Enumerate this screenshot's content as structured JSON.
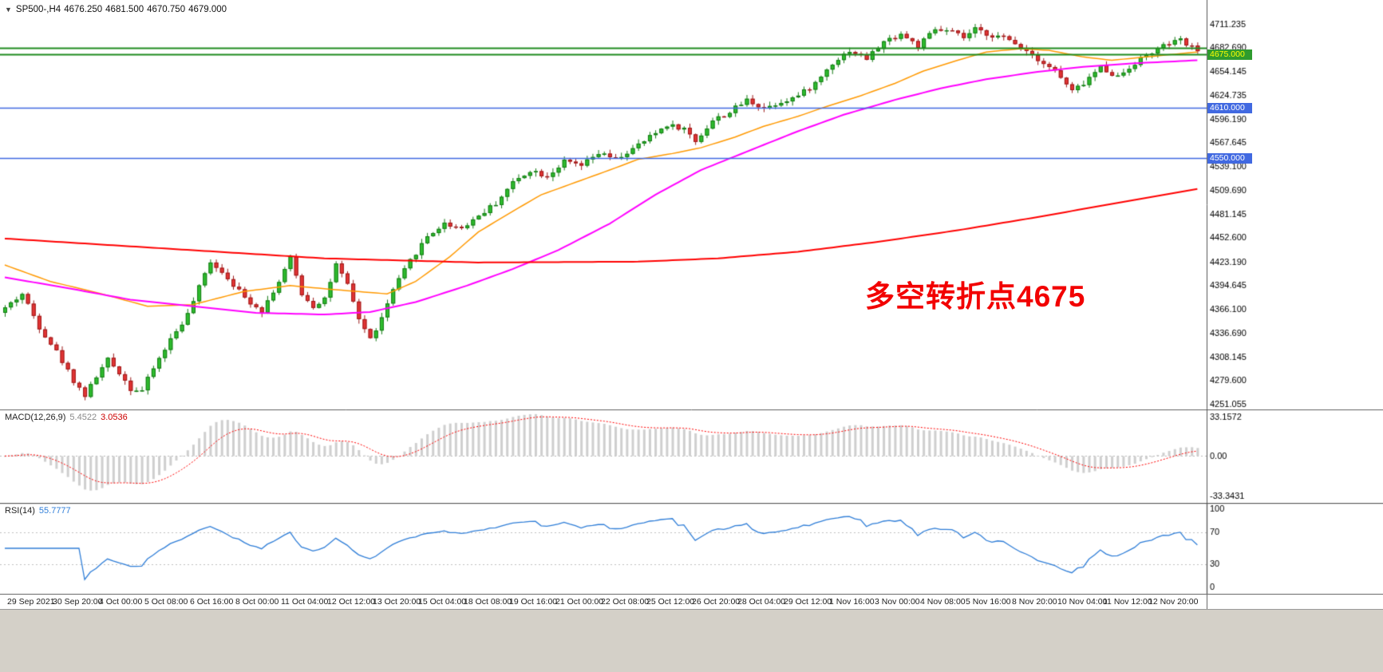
{
  "header": {
    "symbol_tf": "SP500-,H4",
    "open": "4676.250",
    "high": "4681.500",
    "low": "4670.750",
    "close": "4679.000"
  },
  "colors": {
    "up_fill": "#2ebd2e",
    "up_border": "#157a15",
    "down_fill": "#e23434",
    "down_border": "#9c1a1a",
    "axis_text": "#000000",
    "panel_border": "#6b6b6b",
    "axis_line": "#555555",
    "bottom_strip": "#d4d0c8"
  },
  "chart_data": [
    {
      "type": "candlestick",
      "title": "SP500- H4 price chart",
      "symbol": "SP500-",
      "timeframe": "H4",
      "n_bars": 210,
      "ylim": [
        4245,
        4741
      ],
      "y_axis_labels": [
        "4711.235",
        "4682.690",
        "4654.145",
        "4624.735",
        "4596.190",
        "4567.645",
        "4539.100",
        "4509.690",
        "4481.145",
        "4452.600",
        "4423.190",
        "4394.645",
        "4366.100",
        "4336.690",
        "4308.145",
        "4279.600",
        "4251.055"
      ],
      "close_path_keyframes": [
        [
          0,
          4368
        ],
        [
          3,
          4385
        ],
        [
          6,
          4345
        ],
        [
          9,
          4315
        ],
        [
          12,
          4280
        ],
        [
          14,
          4262
        ],
        [
          16,
          4285
        ],
        [
          18,
          4305
        ],
        [
          20,
          4290
        ],
        [
          22,
          4270
        ],
        [
          24,
          4268
        ],
        [
          26,
          4295
        ],
        [
          29,
          4330
        ],
        [
          32,
          4360
        ],
        [
          36,
          4425
        ],
        [
          39,
          4405
        ],
        [
          42,
          4380
        ],
        [
          45,
          4365
        ],
        [
          48,
          4400
        ],
        [
          50,
          4428
        ],
        [
          52,
          4385
        ],
        [
          54,
          4370
        ],
        [
          56,
          4380
        ],
        [
          58,
          4420
        ],
        [
          60,
          4395
        ],
        [
          62,
          4355
        ],
        [
          64,
          4330
        ],
        [
          66,
          4355
        ],
        [
          68,
          4390
        ],
        [
          71,
          4425
        ],
        [
          74,
          4455
        ],
        [
          77,
          4470
        ],
        [
          80,
          4465
        ],
        [
          83,
          4480
        ],
        [
          86,
          4495
        ],
        [
          89,
          4520
        ],
        [
          92,
          4535
        ],
        [
          95,
          4528
        ],
        [
          98,
          4545
        ],
        [
          101,
          4540
        ],
        [
          104,
          4555
        ],
        [
          107,
          4548
        ],
        [
          110,
          4560
        ],
        [
          113,
          4575
        ],
        [
          116,
          4590
        ],
        [
          119,
          4585
        ],
        [
          121,
          4570
        ],
        [
          124,
          4595
        ],
        [
          127,
          4605
        ],
        [
          130,
          4620
        ],
        [
          133,
          4610
        ],
        [
          136,
          4618
        ],
        [
          139,
          4625
        ],
        [
          142,
          4640
        ],
        [
          145,
          4665
        ],
        [
          148,
          4680
        ],
        [
          151,
          4670
        ],
        [
          154,
          4690
        ],
        [
          157,
          4700
        ],
        [
          160,
          4685
        ],
        [
          163,
          4705
        ],
        [
          166,
          4702
        ],
        [
          168,
          4695
        ],
        [
          170,
          4705
        ],
        [
          172,
          4700
        ],
        [
          175,
          4695
        ],
        [
          178,
          4685
        ],
        [
          181,
          4670
        ],
        [
          184,
          4655
        ],
        [
          187,
          4630
        ],
        [
          189,
          4640
        ],
        [
          192,
          4660
        ],
        [
          195,
          4648
        ],
        [
          198,
          4665
        ],
        [
          201,
          4678
        ],
        [
          204,
          4688
        ],
        [
          206,
          4692
        ],
        [
          208,
          4683
        ],
        [
          209,
          4679
        ]
      ],
      "moving_averages": [
        {
          "name": "ma-fast-orange",
          "color": "#ff9900",
          "width": 1.5,
          "points": [
            [
              0,
              4420
            ],
            [
              8,
              4400
            ],
            [
              17,
              4385
            ],
            [
              25,
              4370
            ],
            [
              33,
              4372
            ],
            [
              42,
              4388
            ],
            [
              50,
              4395
            ],
            [
              58,
              4390
            ],
            [
              67,
              4385
            ],
            [
              72,
              4400
            ],
            [
              78,
              4430
            ],
            [
              83,
              4460
            ],
            [
              89,
              4485
            ],
            [
              94,
              4505
            ],
            [
              100,
              4520
            ],
            [
              106,
              4535
            ],
            [
              111,
              4548
            ],
            [
              117,
              4555
            ],
            [
              122,
              4562
            ],
            [
              128,
              4575
            ],
            [
              133,
              4588
            ],
            [
              139,
              4600
            ],
            [
              144,
              4612
            ],
            [
              150,
              4625
            ],
            [
              156,
              4640
            ],
            [
              161,
              4655
            ],
            [
              167,
              4668
            ],
            [
              172,
              4678
            ],
            [
              178,
              4682
            ],
            [
              183,
              4680
            ],
            [
              189,
              4672
            ],
            [
              194,
              4668
            ],
            [
              200,
              4672
            ],
            [
              209,
              4678
            ]
          ]
        },
        {
          "name": "ma-mid-magenta",
          "color": "#ff00ff",
          "width": 2,
          "points": [
            [
              0,
              4405
            ],
            [
              11,
              4392
            ],
            [
              22,
              4378
            ],
            [
              33,
              4370
            ],
            [
              44,
              4362
            ],
            [
              56,
              4360
            ],
            [
              64,
              4363
            ],
            [
              72,
              4375
            ],
            [
              81,
              4395
            ],
            [
              89,
              4415
            ],
            [
              97,
              4438
            ],
            [
              106,
              4470
            ],
            [
              114,
              4505
            ],
            [
              122,
              4535
            ],
            [
              131,
              4560
            ],
            [
              139,
              4582
            ],
            [
              147,
              4602
            ],
            [
              156,
              4620
            ],
            [
              164,
              4634
            ],
            [
              172,
              4645
            ],
            [
              181,
              4654
            ],
            [
              189,
              4660
            ],
            [
              197,
              4664
            ],
            [
              209,
              4668
            ]
          ]
        },
        {
          "name": "ma-slow-red",
          "color": "#ff0000",
          "width": 2,
          "points": [
            [
              0,
              4452
            ],
            [
              28,
              4440
            ],
            [
              56,
              4428
            ],
            [
              83,
              4423
            ],
            [
              111,
              4424
            ],
            [
              125,
              4428
            ],
            [
              139,
              4436
            ],
            [
              153,
              4448
            ],
            [
              167,
              4462
            ],
            [
              181,
              4478
            ],
            [
              194,
              4494
            ],
            [
              209,
              4512
            ]
          ]
        }
      ],
      "hlines": [
        {
          "price": 4683.0,
          "color": "#1f8b1f",
          "width": 2
        },
        {
          "price": 4675.0,
          "color": "#1f8b1f",
          "width": 2,
          "tag": "4675.000",
          "tag_bg": "#2e9b2e",
          "tag_fg": "#ffff00"
        },
        {
          "price": 4610.0,
          "color": "#4169e1",
          "width": 1.5,
          "tag": "4610.000",
          "tag_bg": "#4169e1",
          "tag_fg": "#ffffff"
        },
        {
          "price": 4550.0,
          "color": "#4169e1",
          "width": 1.5,
          "tag": "4550.000",
          "tag_bg": "#4169e1",
          "tag_fg": "#ffffff"
        }
      ],
      "annotation": {
        "text": "多空转折点4675",
        "color": "#f20000"
      }
    },
    {
      "type": "bar",
      "name": "MACD",
      "label": "MACD(12,26,9)",
      "value_main": "5.4522",
      "value_signal": "3.0536",
      "params": [
        12,
        26,
        9
      ],
      "ylim": [
        -33.3431,
        33.1572
      ],
      "y_axis_labels": [
        "33.1572",
        "0.00",
        "-33.3431"
      ],
      "histogram_color": "#cfcfcf",
      "signal_color": "#ff0000",
      "derived_from": "chart_data[0].close_path_keyframes"
    },
    {
      "type": "line",
      "name": "RSI",
      "label": "RSI(14)",
      "value": "55.7777",
      "period": 14,
      "ylim": [
        0,
        100
      ],
      "levels": [
        70,
        30
      ],
      "y_axis_labels": [
        "100",
        "70",
        "30",
        "0"
      ],
      "line_color": "#2f7ed8",
      "level_color": "#c0c0c0",
      "derived_from": "chart_data[0].close_path_keyframes"
    }
  ],
  "time_axis": {
    "labels": [
      "29 Sep 2021",
      "30 Sep 20:00",
      "4 Oct 00:00",
      "5 Oct 08:00",
      "6 Oct 16:00",
      "8 Oct 00:00",
      "11 Oct 04:00",
      "12 Oct 12:00",
      "13 Oct 20:00",
      "15 Oct 04:00",
      "18 Oct 08:00",
      "19 Oct 16:00",
      "21 Oct 00:00",
      "22 Oct 08:00",
      "25 Oct 12:00",
      "26 Oct 20:00",
      "28 Oct 04:00",
      "29 Oct 12:00",
      "1 Nov 16:00",
      "3 Nov 00:00",
      "4 Nov 08:00",
      "5 Nov 16:00",
      "8 Nov 20:00",
      "10 Nov 04:00",
      "11 Nov 12:00",
      "12 Nov 20:00"
    ]
  }
}
